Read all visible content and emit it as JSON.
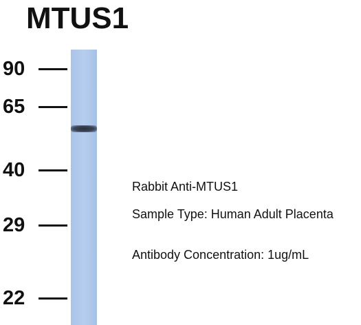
{
  "title": "MTUS1",
  "markers": [
    "90",
    "65",
    "40",
    "29",
    "22"
  ],
  "annotations": [
    "Rabbit Anti-MTUS1",
    "Sample Type: Human Adult Placenta",
    "Antibody Concentration: 1ug/mL"
  ]
}
